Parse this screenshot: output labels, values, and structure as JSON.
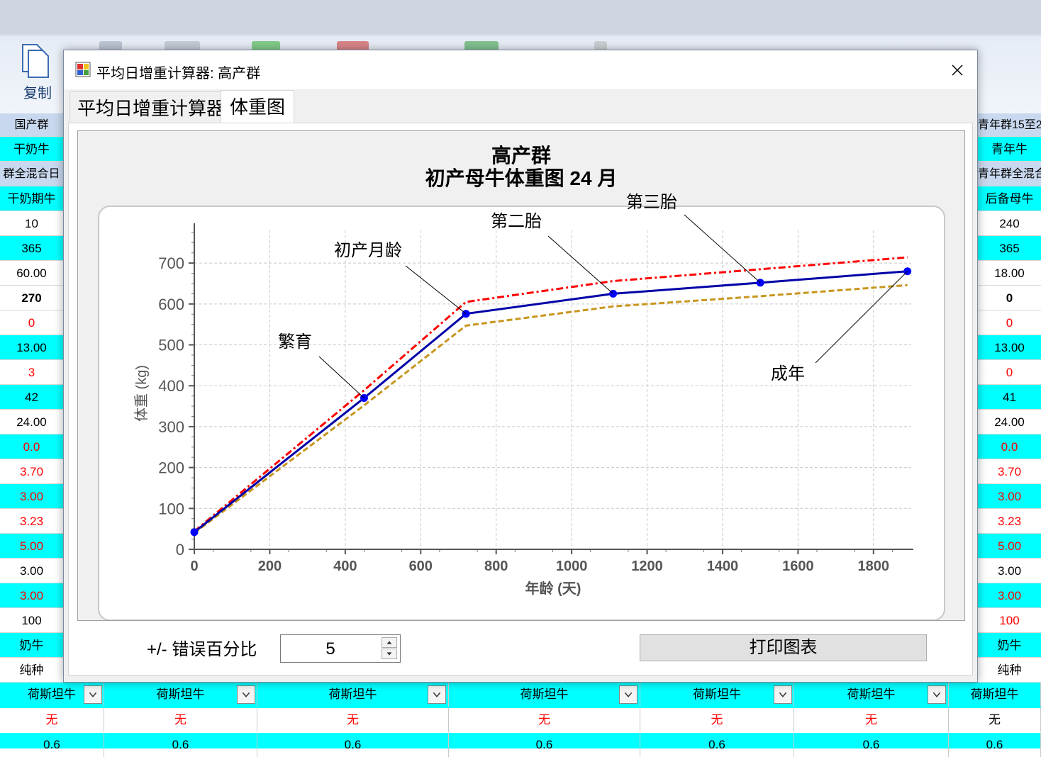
{
  "ribbon": {
    "copy_label": "复制"
  },
  "left_column": {
    "cells": [
      "国产群",
      "干奶牛",
      "群全混合日",
      "干奶期牛",
      "10",
      "365",
      "60.00",
      "270",
      "0",
      "13.00",
      "3",
      "42",
      "24.00",
      "0.0",
      "3.70",
      "3.00",
      "3.23",
      "5.00",
      "3.00",
      "3.00",
      "100",
      "奶牛",
      "纯种"
    ]
  },
  "right_column": {
    "cells": [
      "青年群15至2",
      "青年牛",
      "青年群全混合",
      "后备母牛",
      "240",
      "365",
      "18.00",
      "0",
      "0",
      "13.00",
      "0",
      "41",
      "24.00",
      "0.0",
      "3.70",
      "3.00",
      "3.23",
      "5.00",
      "3.00",
      "3.00",
      "100",
      "奶牛",
      "纯种"
    ]
  },
  "bottom_rows": {
    "breed": [
      "荷斯坦牛",
      "荷斯坦牛",
      "荷斯坦牛",
      "荷斯坦牛",
      "荷斯坦牛",
      "荷斯坦牛",
      "荷斯坦牛"
    ],
    "none": [
      "无",
      "无",
      "无",
      "无",
      "无",
      "无",
      "无"
    ],
    "value": [
      "0.6",
      "0.6",
      "0.6",
      "0.6",
      "0.6",
      "0.6",
      "0.6"
    ]
  },
  "dialog": {
    "title": "平均日增重计算器: 高产群",
    "tabs": [
      "平均日增重计算器",
      "体重图"
    ],
    "active_tab": "体重图",
    "error_label": "+/- 错误百分比",
    "error_value": "5",
    "print_button": "打印图表"
  },
  "colors": {
    "main_line": "#0000a8",
    "upper_line": "#ff0000",
    "lower_line": "#c8961e",
    "marker": "#0000ff",
    "cyan_cell": "#00ffff",
    "red_text": "#ff0000"
  },
  "chart_data": {
    "type": "line",
    "title": "高产群",
    "subtitle": "初产母牛体重图 24 月",
    "xlabel": "年龄 (天)",
    "ylabel": "体重 (kg)",
    "xlim": [
      0,
      1900
    ],
    "ylim": [
      0,
      780
    ],
    "x_ticks": [
      "0",
      "200",
      "400",
      "600",
      "800",
      "1000",
      "1200",
      "1400",
      "1600",
      "1800"
    ],
    "y_ticks": [
      "0",
      "100",
      "200",
      "300",
      "400",
      "500",
      "600",
      "700"
    ],
    "grid": true,
    "series": [
      {
        "x": [
          0,
          450,
          720,
          1110,
          1500,
          1890
        ],
        "y": [
          42,
          370,
          576,
          625,
          652,
          680
        ]
      },
      {
        "x": [
          0,
          450,
          720,
          1110,
          1500,
          1890
        ],
        "y": [
          44,
          389,
          605,
          656,
          685,
          714
        ]
      },
      {
        "x": [
          0,
          450,
          720,
          1110,
          1500,
          1890
        ],
        "y": [
          40,
          352,
          547,
          594,
          619,
          646
        ]
      }
    ],
    "annotations": [
      {
        "text": "繁育",
        "x": 450,
        "y": 370
      },
      {
        "text": "初产月龄",
        "x": 720,
        "y": 576
      },
      {
        "text": "第二胎",
        "x": 1110,
        "y": 625
      },
      {
        "text": "第三胎",
        "x": 1500,
        "y": 652
      },
      {
        "text": "成年",
        "x": 1890,
        "y": 680
      }
    ]
  }
}
